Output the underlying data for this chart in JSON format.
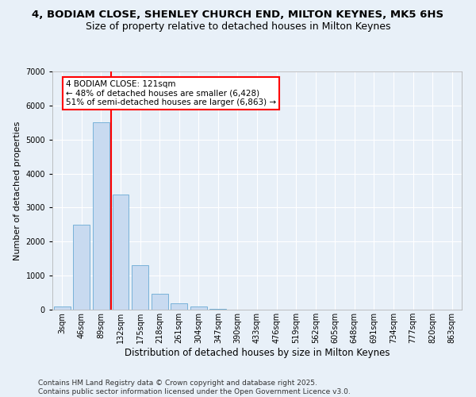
{
  "title1": "4, BODIAM CLOSE, SHENLEY CHURCH END, MILTON KEYNES, MK5 6HS",
  "title2": "Size of property relative to detached houses in Milton Keynes",
  "xlabel": "Distribution of detached houses by size in Milton Keynes",
  "ylabel": "Number of detached properties",
  "categories": [
    "3sqm",
    "46sqm",
    "89sqm",
    "132sqm",
    "175sqm",
    "218sqm",
    "261sqm",
    "304sqm",
    "347sqm",
    "390sqm",
    "433sqm",
    "476sqm",
    "519sqm",
    "562sqm",
    "605sqm",
    "648sqm",
    "691sqm",
    "734sqm",
    "777sqm",
    "820sqm",
    "863sqm"
  ],
  "values": [
    100,
    2500,
    5500,
    3380,
    1300,
    460,
    190,
    90,
    30,
    10,
    5,
    3,
    2,
    1,
    0,
    0,
    0,
    0,
    0,
    0,
    0
  ],
  "bar_color": "#c8daf0",
  "bar_edge_color": "#6aaad4",
  "vline_color": "red",
  "vline_pos": 2.5,
  "annotation_text": "4 BODIAM CLOSE: 121sqm\n← 48% of detached houses are smaller (6,428)\n51% of semi-detached houses are larger (6,863) →",
  "annotation_box_color": "white",
  "annotation_box_edge": "red",
  "ylim": [
    0,
    7000
  ],
  "yticks": [
    0,
    1000,
    2000,
    3000,
    4000,
    5000,
    6000,
    7000
  ],
  "bg_color": "#e8f0f8",
  "grid_color": "white",
  "footer": "Contains HM Land Registry data © Crown copyright and database right 2025.\nContains public sector information licensed under the Open Government Licence v3.0.",
  "title1_fontsize": 9.5,
  "title2_fontsize": 9,
  "xlabel_fontsize": 8.5,
  "ylabel_fontsize": 8,
  "tick_fontsize": 7,
  "footer_fontsize": 6.5,
  "annot_fontsize": 7.5
}
